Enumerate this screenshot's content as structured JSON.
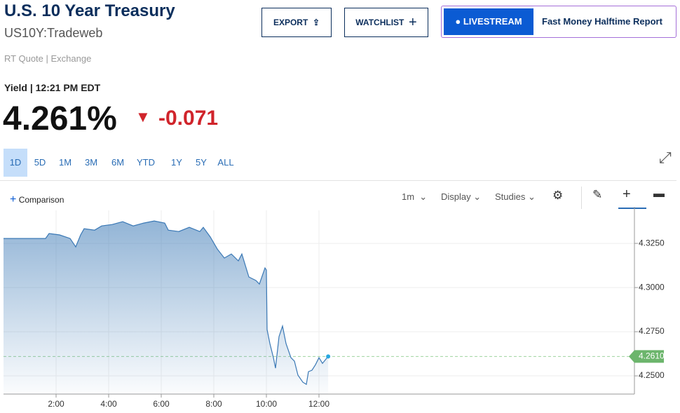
{
  "header": {
    "title": "U.S. 10 Year Treasury",
    "symbol": "US10Y:Tradeweb",
    "source": "RT Quote | Exchange"
  },
  "buttons": {
    "export": "EXPORT",
    "watchlist": "WATCHLIST",
    "livestream": "LIVESTREAM",
    "show": "Fast Money Halftime Report"
  },
  "quote": {
    "label": "Yield | 12:21 PM EDT",
    "price": "4.261%",
    "change": "-0.071"
  },
  "ranges": [
    "1D",
    "5D",
    "1M",
    "3M",
    "6M",
    "YTD",
    "1Y",
    "5Y",
    "ALL"
  ],
  "toolbar": {
    "comparison": "Comparison",
    "interval": "1m",
    "display": "Display",
    "studies": "Studies"
  },
  "chart": {
    "type": "line",
    "color": "#3a78b5",
    "x": [
      0,
      1.6,
      1.733,
      2.133,
      2.533,
      2.747,
      2.933,
      3.067,
      3.467,
      3.733,
      4.133,
      4.533,
      4.933,
      5.333,
      5.733,
      6.133,
      6.267,
      6.667,
      7.067,
      7.467,
      7.6,
      7.867,
      8.133,
      8.4,
      8.667,
      8.933,
      9.067,
      9.333,
      9.6,
      9.733,
      9.947,
      10.0,
      10.027,
      10.133,
      10.267,
      10.347,
      10.48,
      10.613,
      10.747,
      10.933,
      11.067,
      11.2,
      11.387,
      11.52,
      11.6,
      11.733,
      11.867,
      12.0,
      12.133,
      12.267,
      12.35
    ],
    "values": [
      4.3278,
      4.3278,
      4.3306,
      4.3298,
      4.3278,
      4.323,
      4.3298,
      4.3333,
      4.3325,
      4.3349,
      4.3357,
      4.3373,
      4.3349,
      4.3365,
      4.3377,
      4.3365,
      4.3325,
      4.3317,
      4.3341,
      4.3317,
      4.3341,
      4.3286,
      4.3218,
      4.3167,
      4.319,
      4.3151,
      4.319,
      4.306,
      4.304,
      4.302,
      4.3111,
      4.3099,
      4.2762,
      4.2683,
      4.2603,
      4.2544,
      4.2722,
      4.2782,
      4.2683,
      4.2603,
      4.2583,
      4.2504,
      4.2464,
      4.2452,
      4.2524,
      4.2532,
      4.2563,
      4.2603,
      4.2571,
      4.2595,
      4.261
    ],
    "xlim": [
      0,
      24
    ],
    "ylim": [
      4.2397,
      4.3437
    ],
    "xticks": [
      {
        "value": 2,
        "label": "2:00"
      },
      {
        "value": 4,
        "label": "4:00"
      },
      {
        "value": 6,
        "label": "6:00"
      },
      {
        "value": 8,
        "label": "8:00"
      },
      {
        "value": 10,
        "label": "10:00"
      },
      {
        "value": 12,
        "label": "12:00"
      }
    ],
    "yticks": [
      {
        "value": 4.25,
        "label": "4.2500"
      },
      {
        "value": 4.275,
        "label": "4.2750"
      },
      {
        "value": 4.3,
        "label": "4.3000"
      },
      {
        "value": 4.325,
        "label": "4.3250"
      }
    ],
    "last_price": {
      "value": 4.261,
      "label": "4.2610"
    }
  }
}
